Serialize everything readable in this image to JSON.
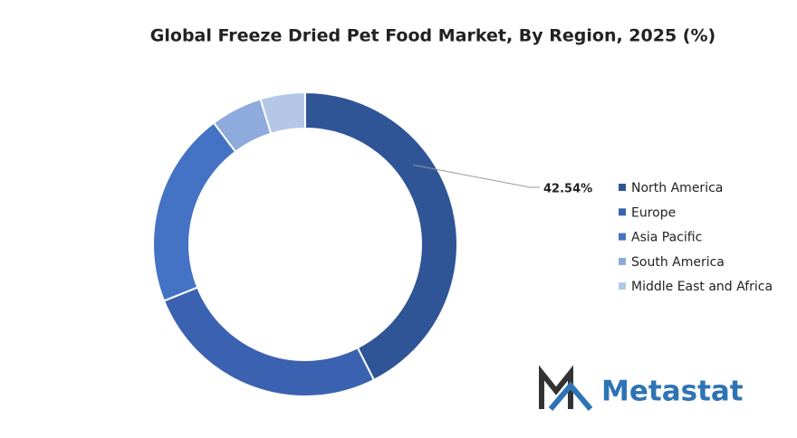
{
  "chart_data": {
    "type": "donut",
    "title": "Global Freeze Dried Pet Food Market, By Region, 2025 (%)",
    "categories": [
      "North America",
      "Europe",
      "Asia Pacific",
      "South America",
      "Middle East and Africa"
    ],
    "values": [
      42.54,
      26.4,
      20.8,
      5.5,
      4.76
    ],
    "value_labels": [
      "42.54%",
      null,
      null,
      null,
      null
    ],
    "colors": [
      "#2f5597",
      "#3a62b0",
      "#4472c4",
      "#8faadc",
      "#b4c7e7"
    ],
    "legend": "right"
  },
  "logo": {
    "text": "Metastat"
  }
}
